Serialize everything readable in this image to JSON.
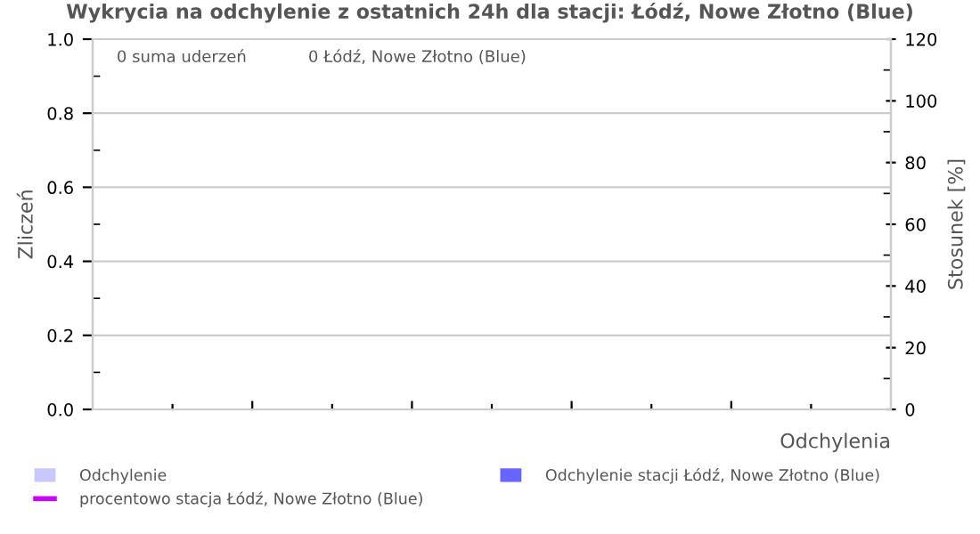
{
  "chart_data": {
    "type": "bar",
    "title": "Wykrycia na odchylenie z ostatnich 24h dla stacji: Łódź, Nowe Złotno (Blue)",
    "xlabel": "Odchylenia",
    "ylabel": "Zliczeń",
    "y2label": "Stosunek [%]",
    "annotations": [
      "0 suma uderzeń",
      "0 Łódź, Nowe Złotno (Blue)"
    ],
    "categories": [
      null,
      null,
      null,
      null,
      null,
      null,
      null,
      null,
      null,
      null
    ],
    "series": [
      {
        "name": "Odchylenie",
        "color": "#c8c8ff",
        "values": [
          0,
          0,
          0,
          0,
          0,
          0,
          0,
          0,
          0,
          0
        ]
      },
      {
        "name": "Odchylenie stacji Łódź, Nowe Złotno (Blue)",
        "color": "#6666ff",
        "values": [
          0,
          0,
          0,
          0,
          0,
          0,
          0,
          0,
          0,
          0
        ]
      },
      {
        "name": "procentowo stacja Łódź, Nowe Złotno (Blue)",
        "color": "#cc00ff",
        "type": "line",
        "values": [
          null,
          null,
          null,
          null,
          null,
          null,
          null,
          null,
          null,
          null
        ]
      }
    ],
    "ylim": [
      0,
      1
    ],
    "yticks": [
      {
        "value": 0,
        "label": "0.0"
      },
      {
        "value": 0.1,
        "label": null
      },
      {
        "value": 0.2,
        "label": "0.2"
      },
      {
        "value": 0.3,
        "label": null
      },
      {
        "value": 0.4,
        "label": "0.4"
      },
      {
        "value": 0.5,
        "label": null
      },
      {
        "value": 0.6,
        "label": "0.6"
      },
      {
        "value": 0.7,
        "label": null
      },
      {
        "value": 0.8,
        "label": "0.8"
      },
      {
        "value": 0.9,
        "label": null
      },
      {
        "value": 1.0,
        "label": "1.0"
      }
    ],
    "y2lim": [
      0,
      120
    ],
    "y2ticks": [
      0,
      {
        "value": 10,
        "label": null
      },
      20,
      {
        "value": 30,
        "label": null
      },
      40,
      {
        "value": 50,
        "label": null
      },
      60,
      {
        "value": 70,
        "label": null
      },
      80,
      {
        "value": 90,
        "label": null
      },
      100,
      {
        "value": 110,
        "label": null
      },
      120
    ],
    "grid": "y",
    "legend": "bottom"
  }
}
